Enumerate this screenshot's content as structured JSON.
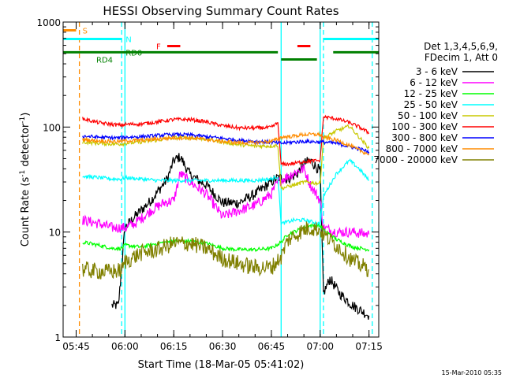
{
  "chart_data": {
    "type": "line",
    "title": "HESSI Observing Summary Count Rates",
    "xlabel": "Start Time (18-Mar-05 05:41:02)",
    "ylabel_main": "Count Rate (s",
    "ylabel_sup1": "-1",
    "ylabel_mid": " detector",
    "ylabel_sup2": "-1",
    "ylabel_end": ")",
    "yscale": "log",
    "ylim": [
      1,
      1000
    ],
    "xlim": [
      "05:41",
      "07:18"
    ],
    "x_ticks": [
      "05:45",
      "06:00",
      "06:15",
      "06:30",
      "06:45",
      "07:00",
      "07:15"
    ],
    "y_ticks": [
      {
        "value": 1,
        "label": "1"
      },
      {
        "value": 10,
        "label": "10"
      },
      {
        "value": 100,
        "label": "100"
      },
      {
        "value": 1000,
        "label": "1000"
      }
    ],
    "legend_header": [
      "Det 1,3,4,5,6,9,",
      "FDecim 1, Att 0"
    ],
    "legend_placement": "right",
    "series": [
      {
        "name": "3 - 6 keV",
        "color": "#000000",
        "x": [
          "05:44",
          "05:47",
          "05:48",
          "05:52",
          "05:56",
          "05:58",
          "06:00",
          "06:03",
          "06:08",
          "06:13",
          "06:15",
          "06:17",
          "06:20",
          "06:25",
          "06:30",
          "06:35",
          "06:40",
          "06:45",
          "06:47",
          "06:50",
          "06:53",
          "06:55",
          "06:57",
          "07:00",
          "07:01",
          "07:03",
          "07:06",
          "07:10",
          "07:15"
        ],
        "y": [
          null,
          null,
          null,
          null,
          2,
          2,
          11,
          14,
          20,
          32,
          48,
          52,
          35,
          28,
          19,
          19,
          23,
          30,
          33,
          32,
          36,
          45,
          48,
          38,
          2.6,
          3.6,
          2.6,
          2.0,
          1.6
        ]
      },
      {
        "name": "6 - 12 keV",
        "color": "#ff00ff",
        "x": [
          "05:47",
          "05:52",
          "05:56",
          "05:59",
          "06:00",
          "06:03",
          "06:08",
          "06:12",
          "06:15",
          "06:17",
          "06:20",
          "06:25",
          "06:30",
          "06:35",
          "06:40",
          "06:45",
          "06:47",
          "06:50",
          "06:53",
          "06:55",
          "06:57",
          "07:00",
          "07:01",
          "07:05",
          "07:10",
          "07:15"
        ],
        "y": [
          13,
          12,
          11,
          11,
          11,
          12,
          16,
          19,
          20,
          36,
          30,
          23,
          14,
          16,
          18,
          23,
          30,
          34,
          38,
          40,
          28,
          20,
          11,
          10,
          10,
          9.5
        ]
      },
      {
        "name": "12 - 25 keV",
        "color": "#00ff00",
        "x": [
          "05:47",
          "05:52",
          "05:56",
          "05:59",
          "06:00",
          "06:05",
          "06:10",
          "06:15",
          "06:20",
          "06:25",
          "06:30",
          "06:35",
          "06:40",
          "06:45",
          "06:48",
          "06:50",
          "06:55",
          "06:57",
          "07:00",
          "07:01",
          "07:05",
          "07:10",
          "07:15"
        ],
        "y": [
          8,
          7.5,
          7,
          7,
          7.5,
          7.2,
          7.8,
          8.2,
          8.2,
          7.8,
          7,
          6.8,
          6.8,
          7,
          8,
          9.5,
          11,
          11.5,
          11.5,
          10.5,
          8.5,
          7.2,
          6.8
        ]
      },
      {
        "name": "25 - 50 keV",
        "color": "#00ffff",
        "x": [
          "05:47",
          "05:52",
          "05:56",
          "05:59",
          "06:00",
          "06:05",
          "06:10",
          "06:15",
          "06:20",
          "06:25",
          "06:30",
          "06:35",
          "06:40",
          "06:45",
          "06:47",
          "06:48",
          "06:52",
          "06:55",
          "07:00",
          "07:01",
          "07:05",
          "07:09",
          "07:12",
          "07:15"
        ],
        "y": [
          34,
          33,
          32,
          32,
          33,
          32,
          31,
          31,
          31,
          31,
          31,
          31,
          31,
          32,
          34,
          12,
          13,
          13,
          12,
          22,
          36,
          48,
          40,
          31
        ]
      },
      {
        "name": "50 - 100 keV",
        "color": "#c8c800",
        "x": [
          "05:47",
          "05:52",
          "05:56",
          "05:59",
          "06:00",
          "06:05",
          "06:10",
          "06:15",
          "06:20",
          "06:25",
          "06:30",
          "06:35",
          "06:40",
          "06:45",
          "06:47",
          "06:48",
          "06:52",
          "06:55",
          "07:00",
          "07:01",
          "07:05",
          "07:09",
          "07:12",
          "07:15"
        ],
        "y": [
          72,
          70,
          69,
          69,
          70,
          72,
          75,
          79,
          79,
          77,
          72,
          68,
          66,
          66,
          67,
          26,
          28,
          30,
          29,
          78,
          92,
          102,
          80,
          63
        ]
      },
      {
        "name": "100 - 300 keV",
        "color": "#ff0000",
        "x": [
          "05:47",
          "05:52",
          "05:56",
          "05:59",
          "06:00",
          "06:05",
          "06:10",
          "06:15",
          "06:20",
          "06:25",
          "06:30",
          "06:35",
          "06:40",
          "06:45",
          "06:47",
          "06:48",
          "06:52",
          "06:55",
          "07:00",
          "07:01",
          "07:05",
          "07:09",
          "07:12",
          "07:15"
        ],
        "y": [
          120,
          110,
          106,
          104,
          106,
          107,
          112,
          118,
          118,
          112,
          103,
          98,
          98,
          99,
          110,
          44,
          45,
          47,
          48,
          125,
          120,
          110,
          100,
          88
        ]
      },
      {
        "name": "300 - 800 keV",
        "color": "#0000ff",
        "x": [
          "05:47",
          "05:52",
          "05:56",
          "05:59",
          "06:00",
          "06:05",
          "06:10",
          "06:15",
          "06:20",
          "06:25",
          "06:30",
          "06:35",
          "06:40",
          "06:45",
          "06:47",
          "06:48",
          "06:52",
          "06:55",
          "07:00",
          "07:01",
          "07:05",
          "07:09",
          "07:12",
          "07:15"
        ],
        "y": [
          82,
          80,
          79,
          79,
          80,
          81,
          83,
          85,
          84,
          81,
          78,
          75,
          73,
          72,
          70,
          70,
          72,
          73,
          72,
          72,
          70,
          65,
          62,
          58
        ]
      },
      {
        "name": "800 - 7000 keV",
        "color": "#ff8c00",
        "x": [
          "05:47",
          "05:52",
          "05:56",
          "05:59",
          "06:00",
          "06:05",
          "06:10",
          "06:15",
          "06:20",
          "06:25",
          "06:30",
          "06:35",
          "06:40",
          "06:45",
          "06:47",
          "06:48",
          "06:52",
          "06:55",
          "07:00",
          "07:01",
          "07:05",
          "07:09",
          "07:12",
          "07:15"
        ],
        "y": [
          76,
          74,
          73,
          73,
          74,
          75,
          77,
          79,
          79,
          76,
          73,
          71,
          71,
          73,
          77,
          80,
          82,
          85,
          85,
          80,
          75,
          67,
          60,
          55
        ]
      },
      {
        "name": "7000 - 20000 keV",
        "color": "#808000",
        "x": [
          "05:47",
          "05:52",
          "05:56",
          "05:59",
          "06:00",
          "06:05",
          "06:10",
          "06:15",
          "06:20",
          "06:25",
          "06:30",
          "06:35",
          "06:40",
          "06:45",
          "06:48",
          "06:50",
          "06:55",
          "06:57",
          "07:00",
          "07:01",
          "07:05",
          "07:10",
          "07:15"
        ],
        "y": [
          4.4,
          4.2,
          4.2,
          4.3,
          5.2,
          6.3,
          6.8,
          7.8,
          7.8,
          7,
          5.6,
          5.0,
          4.6,
          4.6,
          5.8,
          8.4,
          10.5,
          11,
          10.5,
          9.5,
          7.5,
          5.3,
          4.4
        ]
      }
    ],
    "flags": [
      {
        "label": "S",
        "color": "#ff8c00",
        "segments": [
          [
            "05:41",
            "05:45"
          ]
        ],
        "y": 835
      },
      {
        "label": "N",
        "color": "#00ffff",
        "segments": [
          [
            "05:41",
            "05:59"
          ],
          [
            "07:01",
            "07:18"
          ]
        ],
        "y": 690
      },
      {
        "label": "F",
        "color": "#ff0000",
        "segments": [
          [
            "06:13",
            "06:17"
          ],
          [
            "06:53",
            "06:57"
          ]
        ],
        "y": 590
      },
      {
        "label": "RD4",
        "color": "#008000",
        "segments": [
          [
            "05:41",
            "06:47"
          ],
          [
            "07:04",
            "07:18"
          ]
        ],
        "y": 515
      },
      {
        "label": "RD0",
        "color": "#008000",
        "segments": [
          [
            "06:48",
            "06:59"
          ]
        ],
        "y": 440
      }
    ],
    "vlines": [
      {
        "time": "05:46",
        "color": "#ff8c00",
        "style": "dashed"
      },
      {
        "time": "05:59",
        "color": "#00ffff",
        "style": "dashed"
      },
      {
        "time": "06:00",
        "color": "#00ffff",
        "style": "solid"
      },
      {
        "time": "06:48",
        "color": "#00ffff",
        "style": "solid"
      },
      {
        "time": "07:00",
        "color": "#00ffff",
        "style": "solid"
      },
      {
        "time": "07:01",
        "color": "#00ffff",
        "style": "dashed"
      },
      {
        "time": "07:16",
        "color": "#00ffff",
        "style": "dashed"
      }
    ],
    "footer_stamp": "15-Mar-2010 05:35"
  }
}
